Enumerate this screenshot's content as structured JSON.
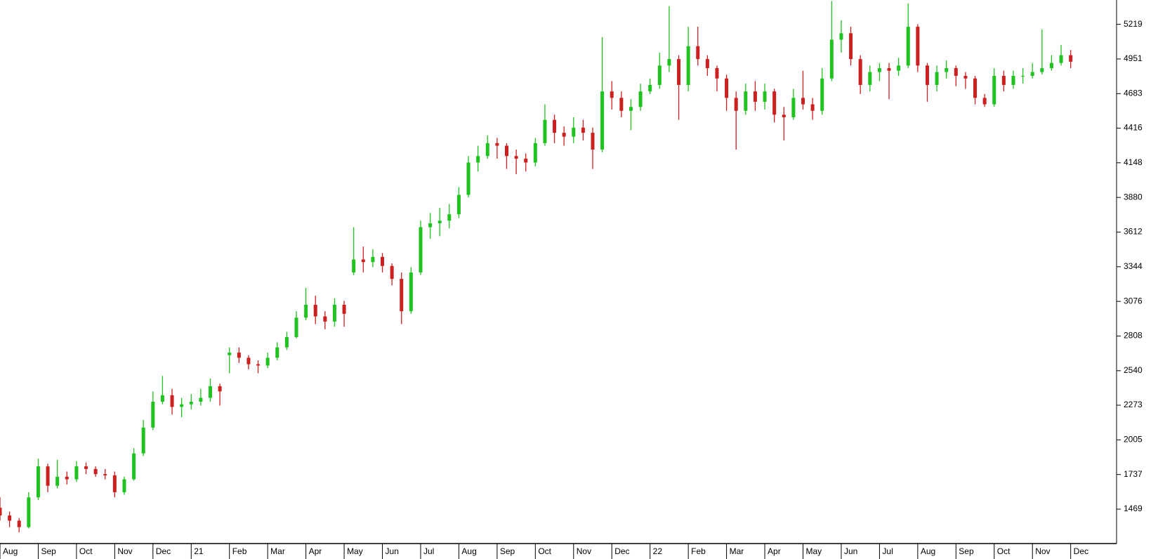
{
  "chart_data": {
    "type": "candlestick",
    "up_color": "#1fc31f",
    "down_color": "#cc1f1f",
    "xlim": [
      0,
      29.2
    ],
    "ylim": [
      1203,
      5407
    ],
    "yticks": [
      1469,
      1737,
      2005,
      2273,
      2540,
      2808,
      3076,
      3344,
      3612,
      3880,
      4148,
      4416,
      4683,
      4951,
      5219
    ],
    "xticks": [
      {
        "value": 0,
        "label": "Aug"
      },
      {
        "value": 1,
        "label": "Sep"
      },
      {
        "value": 2,
        "label": "Oct"
      },
      {
        "value": 3,
        "label": "Nov"
      },
      {
        "value": 4,
        "label": "Dec"
      },
      {
        "value": 5,
        "label": "21"
      },
      {
        "value": 6,
        "label": "Feb"
      },
      {
        "value": 7,
        "label": "Mar"
      },
      {
        "value": 8,
        "label": "Apr"
      },
      {
        "value": 9,
        "label": "May"
      },
      {
        "value": 10,
        "label": "Jun"
      },
      {
        "value": 11,
        "label": "Jul"
      },
      {
        "value": 12,
        "label": "Aug"
      },
      {
        "value": 13,
        "label": "Sep"
      },
      {
        "value": 14,
        "label": "Oct"
      },
      {
        "value": 15,
        "label": "Nov"
      },
      {
        "value": 16,
        "label": "Dec"
      },
      {
        "value": 17,
        "label": "22"
      },
      {
        "value": 18,
        "label": "Feb"
      },
      {
        "value": 19,
        "label": "Mar"
      },
      {
        "value": 20,
        "label": "Apr"
      },
      {
        "value": 21,
        "label": "May"
      },
      {
        "value": 22,
        "label": "Jun"
      },
      {
        "value": 23,
        "label": "Jul"
      },
      {
        "value": 24,
        "label": "Aug"
      },
      {
        "value": 25,
        "label": "Sep"
      },
      {
        "value": 26,
        "label": "Oct"
      },
      {
        "value": 27,
        "label": "Nov"
      },
      {
        "value": 28,
        "label": "Dec"
      }
    ],
    "x": [
      0,
      0.25,
      0.5,
      0.75,
      1,
      1.25,
      1.5,
      1.75,
      2,
      2.25,
      2.5,
      2.75,
      3,
      3.25,
      3.5,
      3.75,
      4,
      4.25,
      4.5,
      4.75,
      5,
      5.25,
      5.5,
      5.75,
      6,
      6.25,
      6.5,
      6.75,
      7,
      7.25,
      7.5,
      7.75,
      8,
      8.25,
      8.5,
      8.75,
      9,
      9.25,
      9.5,
      9.75,
      10,
      10.25,
      10.5,
      10.75,
      11,
      11.25,
      11.5,
      11.75,
      12,
      12.25,
      12.5,
      12.75,
      13,
      13.25,
      13.5,
      13.75,
      14,
      14.25,
      14.5,
      14.75,
      15,
      15.25,
      15.5,
      15.75,
      16,
      16.25,
      16.5,
      16.75,
      17,
      17.25,
      17.5,
      17.75,
      18,
      18.25,
      18.5,
      18.75,
      19,
      19.25,
      19.5,
      19.75,
      20,
      20.25,
      20.5,
      20.75,
      21,
      21.25,
      21.5,
      21.75,
      22,
      22.25,
      22.5,
      22.75,
      23,
      23.25,
      23.5,
      23.75,
      24,
      24.25,
      24.5,
      24.75,
      25,
      25.25,
      25.5,
      25.75,
      26,
      26.25,
      26.5,
      26.75,
      27,
      27.25,
      27.5,
      27.75,
      28
    ],
    "open": [
      1480,
      1420,
      1380,
      1330,
      1560,
      1800,
      1650,
      1720,
      1700,
      1800,
      1780,
      1740,
      1730,
      1600,
      1700,
      1900,
      2100,
      2300,
      2350,
      2260,
      2280,
      2300,
      2330,
      2420,
      2660,
      2680,
      2640,
      2590,
      2580,
      2640,
      2720,
      2800,
      2950,
      3050,
      2960,
      2920,
      3050,
      3300,
      3400,
      3380,
      3420,
      3350,
      3250,
      3000,
      3300,
      3650,
      3680,
      3700,
      3750,
      3900,
      4150,
      4200,
      4300,
      4280,
      4200,
      4180,
      4150,
      4300,
      4480,
      4380,
      4350,
      4420,
      4380,
      4250,
      4700,
      4650,
      4550,
      4580,
      4700,
      4750,
      4900,
      4950,
      4750,
      5050,
      4950,
      4880,
      4800,
      4650,
      4550,
      4700,
      4620,
      4700,
      4520,
      4500,
      4650,
      4600,
      4550,
      4800,
      5100,
      5150,
      4950,
      4750,
      4850,
      4880,
      4860,
      4900,
      5200,
      4900,
      4750,
      4850,
      4880,
      4820,
      4800,
      4650,
      4600,
      4820,
      4750,
      4820,
      4820,
      4850,
      4880,
      4920,
      4980
    ],
    "high": [
      1560,
      1450,
      1400,
      1600,
      1860,
      1820,
      1850,
      1760,
      1840,
      1830,
      1800,
      1780,
      1760,
      1720,
      1940,
      2160,
      2380,
      2500,
      2400,
      2330,
      2360,
      2400,
      2480,
      2440,
      2720,
      2720,
      2660,
      2620,
      2680,
      2760,
      2840,
      3000,
      3180,
      3120,
      3000,
      3100,
      3080,
      3650,
      3500,
      3480,
      3450,
      3370,
      3300,
      3340,
      3700,
      3760,
      3800,
      3830,
      3960,
      4200,
      4280,
      4360,
      4340,
      4300,
      4250,
      4220,
      4340,
      4600,
      4520,
      4430,
      4500,
      4480,
      4420,
      5120,
      4780,
      4700,
      4640,
      4760,
      4800,
      5000,
      5360,
      4980,
      5200,
      5200,
      4980,
      4900,
      4830,
      4700,
      4760,
      4780,
      4760,
      4720,
      4580,
      4720,
      4860,
      4650,
      4880,
      5400,
      5250,
      5200,
      4980,
      4900,
      4920,
      4920,
      4960,
      5380,
      5220,
      4920,
      4900,
      4940,
      4900,
      4850,
      4820,
      4680,
      4880,
      4860,
      4860,
      4880,
      4920,
      5180,
      4980,
      5060,
      5020
    ],
    "low": [
      1380,
      1330,
      1290,
      1320,
      1540,
      1600,
      1630,
      1660,
      1680,
      1740,
      1720,
      1700,
      1560,
      1580,
      1690,
      1880,
      2080,
      2280,
      2200,
      2180,
      2240,
      2270,
      2300,
      2270,
      2520,
      2600,
      2550,
      2520,
      2560,
      2620,
      2700,
      2790,
      2930,
      2900,
      2860,
      2880,
      2880,
      3280,
      3300,
      3340,
      3300,
      3200,
      2900,
      2980,
      3280,
      3560,
      3580,
      3640,
      3720,
      3880,
      4080,
      4180,
      4180,
      4100,
      4060,
      4080,
      4120,
      4280,
      4300,
      4280,
      4300,
      4320,
      4100,
      4230,
      4560,
      4500,
      4400,
      4550,
      4680,
      4720,
      4850,
      4480,
      4700,
      4900,
      4820,
      4700,
      4550,
      4250,
      4520,
      4550,
      4560,
      4460,
      4320,
      4480,
      4560,
      4480,
      4520,
      4780,
      5000,
      4900,
      4680,
      4700,
      4780,
      4640,
      4820,
      4880,
      4850,
      4620,
      4700,
      4800,
      4740,
      4720,
      4600,
      4580,
      4580,
      4700,
      4720,
      4760,
      4800,
      4830,
      4860,
      4900,
      4880
    ],
    "close": [
      1420,
      1380,
      1330,
      1560,
      1800,
      1650,
      1720,
      1700,
      1800,
      1780,
      1740,
      1730,
      1600,
      1700,
      1900,
      2100,
      2300,
      2350,
      2260,
      2280,
      2300,
      2330,
      2420,
      2380,
      2680,
      2640,
      2590,
      2580,
      2640,
      2720,
      2800,
      2950,
      3050,
      2960,
      2920,
      3050,
      2980,
      3400,
      3380,
      3420,
      3350,
      3250,
      3000,
      3300,
      3650,
      3680,
      3700,
      3750,
      3900,
      4150,
      4200,
      4300,
      4280,
      4200,
      4180,
      4150,
      4300,
      4480,
      4380,
      4350,
      4420,
      4380,
      4250,
      4700,
      4650,
      4550,
      4580,
      4700,
      4750,
      4900,
      4950,
      4750,
      5050,
      4950,
      4880,
      4800,
      4650,
      4550,
      4700,
      4620,
      4700,
      4520,
      4500,
      4650,
      4600,
      4550,
      4800,
      5100,
      5150,
      4950,
      4750,
      4850,
      4880,
      4860,
      4900,
      5200,
      4900,
      4750,
      4850,
      4880,
      4820,
      4800,
      4650,
      4600,
      4820,
      4750,
      4820,
      4820,
      4850,
      4880,
      4920,
      4980,
      4930
    ]
  }
}
